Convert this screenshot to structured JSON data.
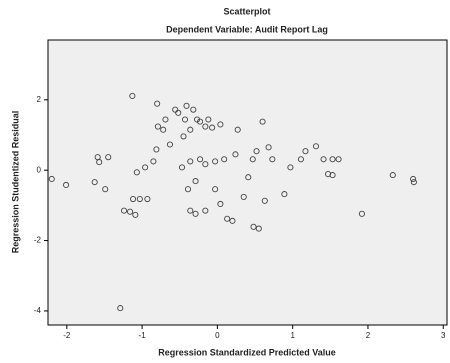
{
  "chart_data": {
    "type": "scatter",
    "title": "Scatterplot",
    "subtitle": "Dependent Variable: Audit Report Lag",
    "x_label": "Regression Standardized Predicted Value",
    "y_label": "Regression Studentized Residual",
    "xlim": [
      -2.25,
      3.05
    ],
    "ylim": [
      -4.4,
      3.7
    ],
    "xticks": [
      -2,
      -1,
      0,
      1,
      2,
      3
    ],
    "yticks": [
      2,
      0,
      -2,
      -4
    ],
    "color": "#444444",
    "background": "#efefef",
    "x": [
      -2.2,
      -2.01,
      -1.63,
      -1.59,
      -1.57,
      -1.45,
      -1.49,
      -1.13,
      -1.29,
      -1.24,
      -1.16,
      -1.09,
      -1.12,
      -1.03,
      -0.93,
      -1.07,
      -0.96,
      -0.85,
      -0.81,
      -0.8,
      -0.79,
      -0.72,
      -0.69,
      -0.63,
      -0.56,
      -0.52,
      -0.45,
      -0.43,
      -0.41,
      -0.36,
      -0.32,
      -0.27,
      -0.23,
      -0.16,
      -0.12,
      -0.07,
      0.04,
      0.27,
      -0.47,
      -0.36,
      -0.23,
      -0.16,
      -0.03,
      0.09,
      0.24,
      -0.39,
      -0.29,
      -0.36,
      -0.29,
      -0.16,
      -0.03,
      0.04,
      0.13,
      0.2,
      0.35,
      0.41,
      0.47,
      0.52,
      0.48,
      0.55,
      0.63,
      0.68,
      0.73,
      0.89,
      0.97,
      1.11,
      1.17,
      1.31,
      1.41,
      1.47,
      1.53,
      1.53,
      1.61,
      1.92,
      2.33,
      2.6,
      2.61,
      0.6
    ],
    "values": [
      -0.25,
      -0.42,
      -0.34,
      0.37,
      0.23,
      0.37,
      -0.54,
      2.11,
      -3.92,
      -1.15,
      -1.18,
      -1.27,
      -0.82,
      -0.82,
      -0.82,
      -0.06,
      0.08,
      0.25,
      0.59,
      1.89,
      1.24,
      1.15,
      1.44,
      0.73,
      1.72,
      1.63,
      0.96,
      1.44,
      1.83,
      1.15,
      1.72,
      1.44,
      1.38,
      1.24,
      1.44,
      1.21,
      1.3,
      1.15,
      0.08,
      0.25,
      0.31,
      0.17,
      0.25,
      0.31,
      0.45,
      -0.54,
      -0.31,
      -1.15,
      -1.24,
      -1.15,
      -0.54,
      -0.96,
      -1.38,
      -1.44,
      -0.76,
      -0.2,
      0.31,
      0.54,
      -1.61,
      -1.66,
      -0.87,
      0.65,
      0.31,
      -0.68,
      0.08,
      0.31,
      0.54,
      0.68,
      0.31,
      -0.11,
      0.31,
      -0.14,
      0.31,
      -1.24,
      -0.14,
      -0.25,
      -0.34,
      1.38
    ]
  }
}
